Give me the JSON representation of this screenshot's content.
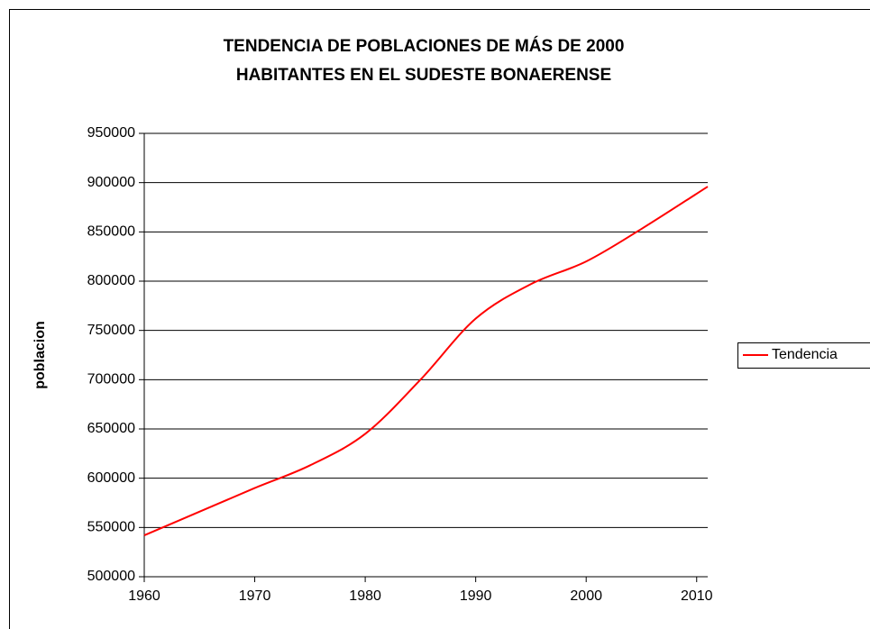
{
  "chart_data": {
    "type": "line",
    "title": [
      "TENDENCIA DE POBLACIONES DE MÁS DE 2000",
      "HABITANTES EN EL SUDESTE BONAERENSE"
    ],
    "ylabel": "poblacion",
    "x": [
      1960,
      1965,
      1970,
      1975,
      1980,
      1985,
      1990,
      1995,
      2000,
      2005,
      2011
    ],
    "series": [
      {
        "name": "Tendencia",
        "color": "#ff0000",
        "values": [
          542000,
          566000,
          590000,
          613000,
          645000,
          700000,
          762000,
          797000,
          820000,
          853000,
          896000
        ]
      }
    ],
    "xlim": [
      1960,
      2011
    ],
    "xticks": [
      1960,
      1970,
      1980,
      1990,
      2000,
      2010
    ],
    "ylim": [
      500000,
      950000
    ],
    "yticks": [
      500000,
      550000,
      600000,
      650000,
      700000,
      750000,
      800000,
      850000,
      900000,
      950000
    ],
    "grid": true,
    "legend": "right"
  }
}
